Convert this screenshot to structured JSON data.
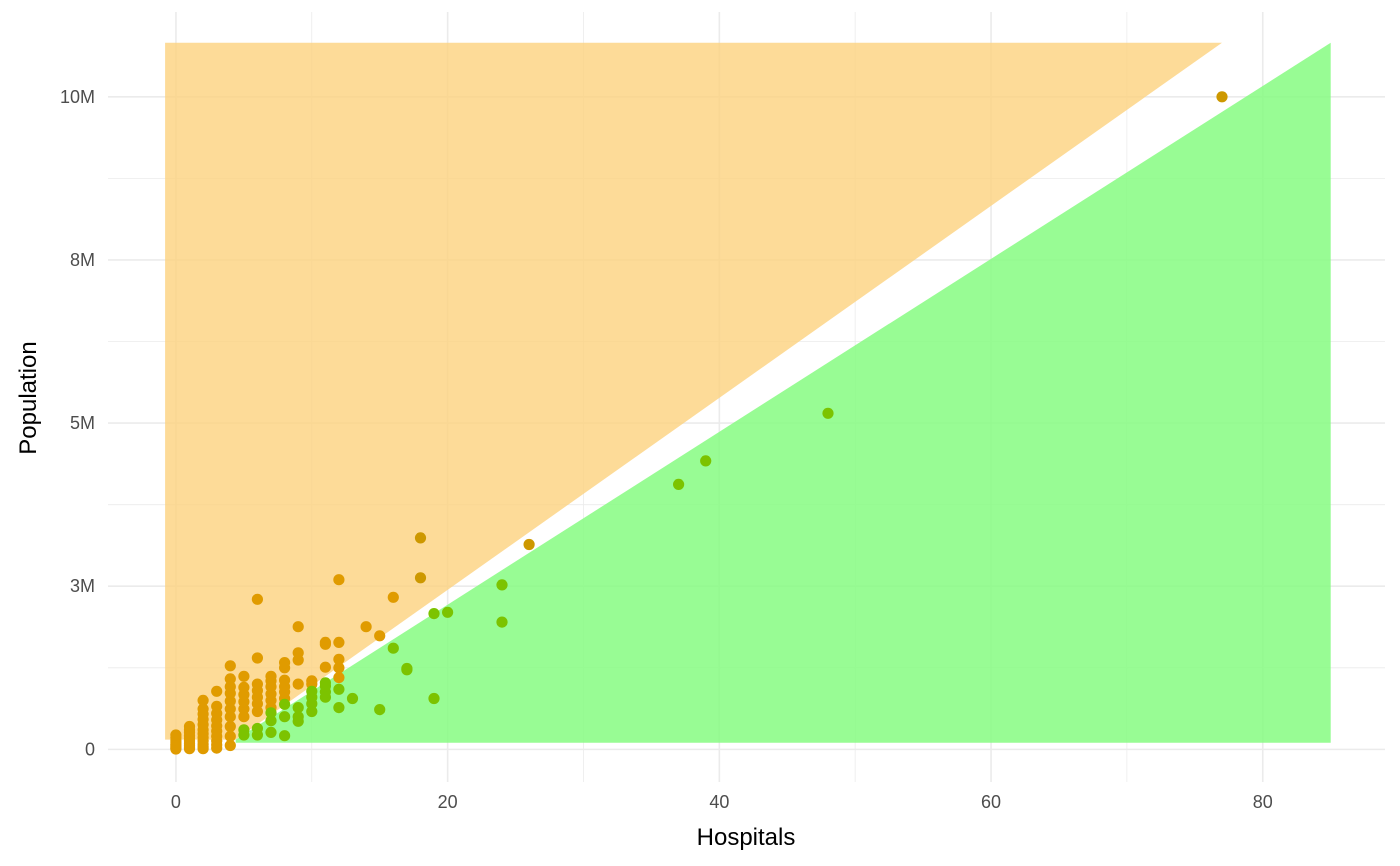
{
  "chart_data": {
    "type": "scatter",
    "title": "",
    "xlabel": "Hospitals",
    "ylabel": "Population",
    "xlim": [
      -5,
      89
    ],
    "ylim": [
      -500000,
      11300000
    ],
    "x_ticks": [
      {
        "value": 0,
        "label": "0"
      },
      {
        "value": 20,
        "label": "20"
      },
      {
        "value": 40,
        "label": "40"
      },
      {
        "value": 60,
        "label": "60"
      },
      {
        "value": 80,
        "label": "80"
      }
    ],
    "y_ticks": [
      {
        "value": 0,
        "label": "0"
      },
      {
        "value": 2500000,
        "label": "3M"
      },
      {
        "value": 5000000,
        "label": "5M"
      },
      {
        "value": 7500000,
        "label": "8M"
      },
      {
        "value": 10000000,
        "label": "10M"
      }
    ],
    "grid": true,
    "colors": {
      "upper_region": "#fcd27e",
      "lower_region": "#86fb81",
      "upper_points": "#e09b00",
      "lower_points": "#7cc300",
      "overlap_points": "#cd9800",
      "grid": "#ebebeb"
    },
    "regions": [
      {
        "id": "upper",
        "polygon": [
          [
            -0.8,
            150000
          ],
          [
            -0.8,
            10830000
          ],
          [
            77,
            10830000
          ],
          [
            4.4,
            150000
          ]
        ]
      },
      {
        "id": "lower",
        "polygon": [
          [
            4.4,
            150000
          ],
          [
            85,
            10830000
          ],
          [
            85,
            100000
          ],
          [
            4.4,
            100000
          ]
        ]
      }
    ],
    "series": [
      {
        "id": "upper",
        "points": [
          [
            0,
            5000
          ],
          [
            0,
            20000
          ],
          [
            0,
            40000
          ],
          [
            0,
            60000
          ],
          [
            0,
            80000
          ],
          [
            0,
            110000
          ],
          [
            0,
            140000
          ],
          [
            0,
            180000
          ],
          [
            0,
            220000
          ],
          [
            1,
            10000
          ],
          [
            1,
            30000
          ],
          [
            1,
            60000
          ],
          [
            1,
            90000
          ],
          [
            1,
            130000
          ],
          [
            1,
            170000
          ],
          [
            1,
            210000
          ],
          [
            1,
            260000
          ],
          [
            1,
            300000
          ],
          [
            1,
            350000
          ],
          [
            2,
            10000
          ],
          [
            2,
            40000
          ],
          [
            2,
            80000
          ],
          [
            2,
            130000
          ],
          [
            2,
            180000
          ],
          [
            2,
            240000
          ],
          [
            2,
            300000
          ],
          [
            2,
            380000
          ],
          [
            2,
            460000
          ],
          [
            2,
            540000
          ],
          [
            2,
            620000
          ],
          [
            2,
            750000
          ],
          [
            3,
            20000
          ],
          [
            3,
            70000
          ],
          [
            3,
            130000
          ],
          [
            3,
            200000
          ],
          [
            3,
            280000
          ],
          [
            3,
            360000
          ],
          [
            3,
            450000
          ],
          [
            3,
            550000
          ],
          [
            3,
            660000
          ],
          [
            3,
            890000
          ],
          [
            4,
            60000
          ],
          [
            4,
            200000
          ],
          [
            4,
            350000
          ],
          [
            4,
            500000
          ],
          [
            4,
            620000
          ],
          [
            4,
            740000
          ],
          [
            4,
            860000
          ],
          [
            4,
            960000
          ],
          [
            4,
            1080000
          ],
          [
            4,
            1280000
          ],
          [
            5,
            500000
          ],
          [
            5,
            620000
          ],
          [
            5,
            730000
          ],
          [
            5,
            840000
          ],
          [
            5,
            950000
          ],
          [
            5,
            1120000
          ],
          [
            6,
            580000
          ],
          [
            6,
            700000
          ],
          [
            6,
            800000
          ],
          [
            6,
            900000
          ],
          [
            6,
            1000000
          ],
          [
            6,
            1400000
          ],
          [
            6,
            2300000
          ],
          [
            7,
            640000
          ],
          [
            7,
            750000
          ],
          [
            7,
            850000
          ],
          [
            7,
            960000
          ],
          [
            7,
            1050000
          ],
          [
            7,
            1120000
          ],
          [
            8,
            780000
          ],
          [
            8,
            880000
          ],
          [
            8,
            960000
          ],
          [
            8,
            1060000
          ],
          [
            8,
            1250000
          ],
          [
            8,
            1330000
          ],
          [
            9,
            1000000
          ],
          [
            9,
            1370000
          ],
          [
            9,
            1480000
          ],
          [
            9,
            1880000
          ],
          [
            10,
            1000000
          ],
          [
            10,
            1050000
          ],
          [
            11,
            1640000
          ],
          [
            11,
            1260000
          ],
          [
            11,
            1610000
          ],
          [
            12,
            1100000
          ],
          [
            12,
            1250000
          ],
          [
            12,
            1380000
          ],
          [
            12,
            1640000
          ],
          [
            12,
            2600000
          ],
          [
            14,
            1880000
          ],
          [
            15,
            1740000
          ],
          [
            16,
            2330000
          ],
          [
            18,
            2630000
          ],
          [
            18,
            3240000
          ],
          [
            26,
            3140000
          ],
          [
            77,
            10000000
          ]
        ]
      },
      {
        "id": "lower",
        "points": [
          [
            5,
            220000
          ],
          [
            5,
            300000
          ],
          [
            6,
            220000
          ],
          [
            6,
            320000
          ],
          [
            7,
            260000
          ],
          [
            7,
            440000
          ],
          [
            7,
            560000
          ],
          [
            8,
            210000
          ],
          [
            8,
            500000
          ],
          [
            8,
            690000
          ],
          [
            9,
            430000
          ],
          [
            9,
            500000
          ],
          [
            9,
            640000
          ],
          [
            10,
            580000
          ],
          [
            10,
            700000
          ],
          [
            10,
            800000
          ],
          [
            10,
            890000
          ],
          [
            11,
            800000
          ],
          [
            11,
            880000
          ],
          [
            11,
            970000
          ],
          [
            11,
            1020000
          ],
          [
            12,
            640000
          ],
          [
            12,
            920000
          ],
          [
            13,
            780000
          ],
          [
            15,
            610000
          ],
          [
            16,
            1550000
          ],
          [
            17,
            1240000
          ],
          [
            17,
            1220000
          ],
          [
            19,
            780000
          ],
          [
            19,
            2080000
          ],
          [
            20,
            2100000
          ],
          [
            24,
            1950000
          ],
          [
            24,
            2520000
          ],
          [
            37,
            4060000
          ],
          [
            39,
            4420000
          ],
          [
            48,
            5150000
          ]
        ]
      }
    ]
  }
}
